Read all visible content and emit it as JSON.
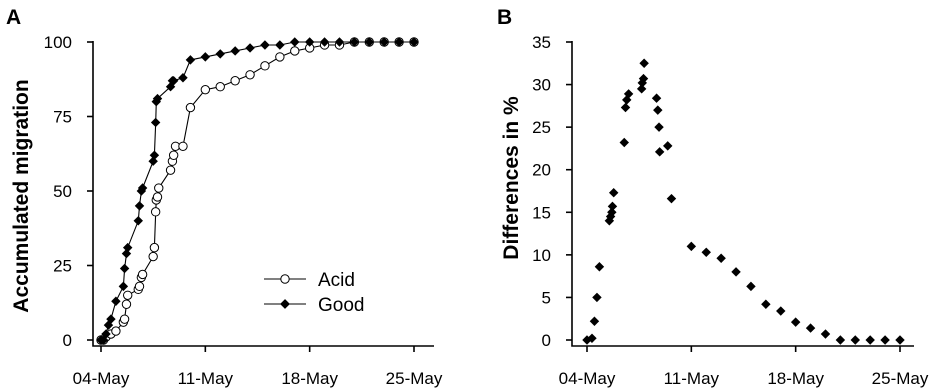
{
  "chart_data": [
    {
      "panel": "A",
      "type": "line",
      "ylabel": "Accumulated migration",
      "xlabel": "",
      "xlim": [
        "2022-05-04",
        "2022-05-25"
      ],
      "ylim": [
        0,
        100
      ],
      "x_ticks": [
        "04-May",
        "11-May",
        "18-May",
        "25-May"
      ],
      "y_ticks": [
        "0",
        "25",
        "50",
        "75",
        "100"
      ],
      "legend": {
        "position": "bottom-right",
        "entries": [
          "Acid",
          "Good"
        ]
      },
      "series": [
        {
          "name": "Acid",
          "marker": "open-circle",
          "points": [
            [
              "2022-05-04T00:00",
              0
            ],
            [
              "2022-05-04T04:00",
              0
            ],
            [
              "2022-05-04T08:00",
              1
            ],
            [
              "2022-05-04T16:00",
              2
            ],
            [
              "2022-05-05T00:00",
              3
            ],
            [
              "2022-05-05T12:00",
              6
            ],
            [
              "2022-05-05T14:00",
              7
            ],
            [
              "2022-05-05T17:00",
              12
            ],
            [
              "2022-05-05T19:00",
              15
            ],
            [
              "2022-05-06T12:00",
              17
            ],
            [
              "2022-05-06T14:00",
              18
            ],
            [
              "2022-05-06T17:00",
              21
            ],
            [
              "2022-05-06T19:00",
              22
            ],
            [
              "2022-05-07T12:00",
              28
            ],
            [
              "2022-05-07T14:00",
              31
            ],
            [
              "2022-05-07T16:00",
              43
            ],
            [
              "2022-05-07T17:00",
              47
            ],
            [
              "2022-05-07T19:00",
              48
            ],
            [
              "2022-05-07T21:00",
              51
            ],
            [
              "2022-05-08T16:00",
              57
            ],
            [
              "2022-05-08T19:00",
              60
            ],
            [
              "2022-05-08T21:00",
              62
            ],
            [
              "2022-05-09T00:00",
              65
            ],
            [
              "2022-05-09T12:00",
              65
            ],
            [
              "2022-05-10T00:00",
              78
            ],
            [
              "2022-05-11T00:00",
              84
            ],
            [
              "2022-05-12T00:00",
              85
            ],
            [
              "2022-05-13T00:00",
              87
            ],
            [
              "2022-05-14T00:00",
              89
            ],
            [
              "2022-05-15T00:00",
              92
            ],
            [
              "2022-05-16T00:00",
              95
            ],
            [
              "2022-05-17T00:00",
              97
            ],
            [
              "2022-05-18T00:00",
              98
            ],
            [
              "2022-05-19T00:00",
              99
            ],
            [
              "2022-05-20T00:00",
              99
            ],
            [
              "2022-05-21T00:00",
              100
            ],
            [
              "2022-05-22T00:00",
              100
            ],
            [
              "2022-05-23T00:00",
              100
            ],
            [
              "2022-05-24T00:00",
              100
            ],
            [
              "2022-05-25T00:00",
              100
            ]
          ]
        },
        {
          "name": "Good",
          "marker": "filled-diamond",
          "points": [
            [
              "2022-05-04T00:00",
              0
            ],
            [
              "2022-05-04T04:00",
              0
            ],
            [
              "2022-05-04T08:00",
              2
            ],
            [
              "2022-05-04T12:00",
              5
            ],
            [
              "2022-05-04T16:00",
              7
            ],
            [
              "2022-05-05T00:00",
              13
            ],
            [
              "2022-05-05T12:00",
              18
            ],
            [
              "2022-05-05T14:00",
              24
            ],
            [
              "2022-05-05T17:00",
              29
            ],
            [
              "2022-05-05T19:00",
              31
            ],
            [
              "2022-05-06T12:00",
              40
            ],
            [
              "2022-05-06T14:00",
              45
            ],
            [
              "2022-05-06T17:00",
              50
            ],
            [
              "2022-05-06T19:00",
              51
            ],
            [
              "2022-05-07T12:00",
              60
            ],
            [
              "2022-05-07T14:00",
              62
            ],
            [
              "2022-05-07T16:00",
              73
            ],
            [
              "2022-05-07T17:00",
              80
            ],
            [
              "2022-05-07T19:00",
              81
            ],
            [
              "2022-05-08T16:00",
              85
            ],
            [
              "2022-05-08T19:00",
              87
            ],
            [
              "2022-05-08T21:00",
              87
            ],
            [
              "2022-05-09T12:00",
              88
            ],
            [
              "2022-05-10T00:00",
              94
            ],
            [
              "2022-05-11T00:00",
              95
            ],
            [
              "2022-05-12T00:00",
              96
            ],
            [
              "2022-05-13T00:00",
              97
            ],
            [
              "2022-05-14T00:00",
              98
            ],
            [
              "2022-05-15T00:00",
              99
            ],
            [
              "2022-05-16T00:00",
              99
            ],
            [
              "2022-05-17T00:00",
              100
            ],
            [
              "2022-05-18T00:00",
              100
            ],
            [
              "2022-05-19T00:00",
              100
            ],
            [
              "2022-05-20T00:00",
              100
            ],
            [
              "2022-05-21T00:00",
              100
            ],
            [
              "2022-05-22T00:00",
              100
            ],
            [
              "2022-05-23T00:00",
              100
            ],
            [
              "2022-05-24T00:00",
              100
            ],
            [
              "2022-05-25T00:00",
              100
            ]
          ]
        }
      ]
    },
    {
      "panel": "B",
      "type": "scatter",
      "ylabel": "Differences in %",
      "xlabel": "",
      "xlim": [
        "2022-05-04",
        "2022-05-25"
      ],
      "ylim": [
        0,
        35
      ],
      "x_ticks": [
        "04-May",
        "11-May",
        "18-May",
        "25-May"
      ],
      "y_ticks": [
        "0",
        "5",
        "10",
        "15",
        "20",
        "25",
        "30",
        "35"
      ],
      "marker": "filled-diamond",
      "points": [
        [
          "2022-05-04T00:00",
          0
        ],
        [
          "2022-05-04T08:00",
          0.2
        ],
        [
          "2022-05-04T12:00",
          2.2
        ],
        [
          "2022-05-04T16:00",
          5
        ],
        [
          "2022-05-04T20:00",
          8.6
        ],
        [
          "2022-05-05T12:00",
          14
        ],
        [
          "2022-05-05T14:00",
          14.5
        ],
        [
          "2022-05-05T16:00",
          15
        ],
        [
          "2022-05-05T17:00",
          15.7
        ],
        [
          "2022-05-05T19:00",
          17.3
        ],
        [
          "2022-05-06T12:00",
          23.2
        ],
        [
          "2022-05-06T14:00",
          27.3
        ],
        [
          "2022-05-06T16:00",
          28.2
        ],
        [
          "2022-05-06T19:00",
          28.9
        ],
        [
          "2022-05-07T16:00",
          29.5
        ],
        [
          "2022-05-07T17:00",
          30.2
        ],
        [
          "2022-05-07T19:00",
          30.7
        ],
        [
          "2022-05-07T20:00",
          32.5
        ],
        [
          "2022-05-08T16:00",
          28.4
        ],
        [
          "2022-05-08T18:00",
          27
        ],
        [
          "2022-05-08T20:00",
          25
        ],
        [
          "2022-05-08T21:00",
          22.1
        ],
        [
          "2022-05-09T10:00",
          22.8
        ],
        [
          "2022-05-09T16:00",
          16.6
        ],
        [
          "2022-05-11T00:00",
          11
        ],
        [
          "2022-05-12T00:00",
          10.3
        ],
        [
          "2022-05-13T00:00",
          9.6
        ],
        [
          "2022-05-14T00:00",
          8
        ],
        [
          "2022-05-15T00:00",
          6.3
        ],
        [
          "2022-05-16T00:00",
          4.2
        ],
        [
          "2022-05-17T00:00",
          3.4
        ],
        [
          "2022-05-18T00:00",
          2.1
        ],
        [
          "2022-05-19T00:00",
          1.4
        ],
        [
          "2022-05-20T00:00",
          0.7
        ],
        [
          "2022-05-21T00:00",
          0
        ],
        [
          "2022-05-22T00:00",
          0
        ],
        [
          "2022-05-23T00:00",
          0
        ],
        [
          "2022-05-24T00:00",
          0
        ],
        [
          "2022-05-25T00:00",
          0
        ]
      ]
    }
  ]
}
